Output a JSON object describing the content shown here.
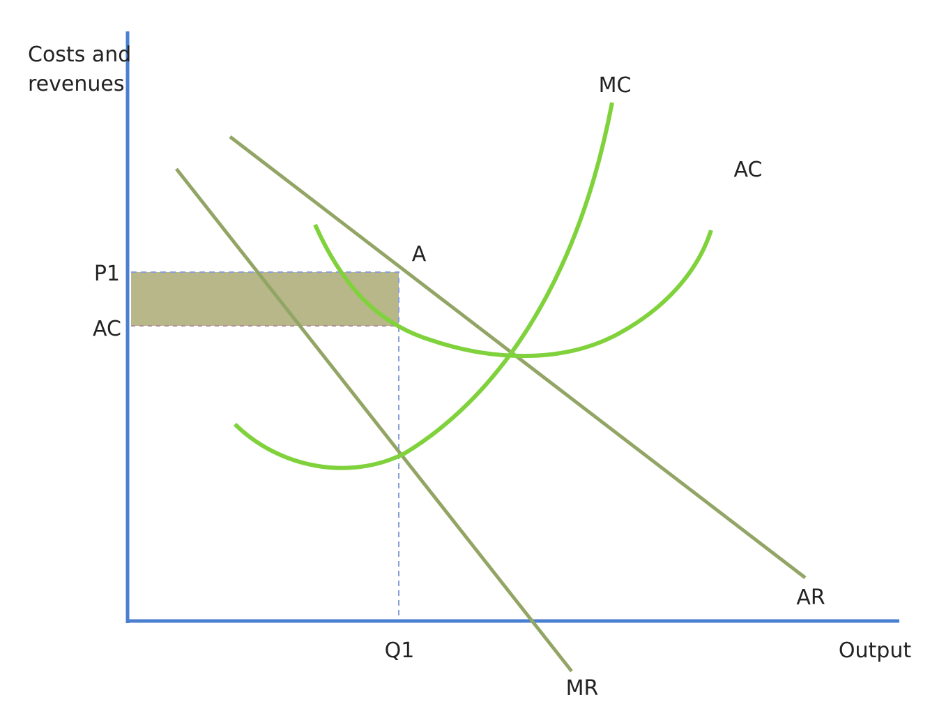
{
  "axes": {
    "y_label": [
      "Costs and",
      "revenues"
    ],
    "x_label": "Output"
  },
  "curves": {
    "mc": "MC",
    "ac": "AC",
    "ar": "AR",
    "mr": "MR"
  },
  "points": {
    "a": "A",
    "p1": "P1",
    "ac_level": "AC",
    "q1": "Q1"
  }
}
